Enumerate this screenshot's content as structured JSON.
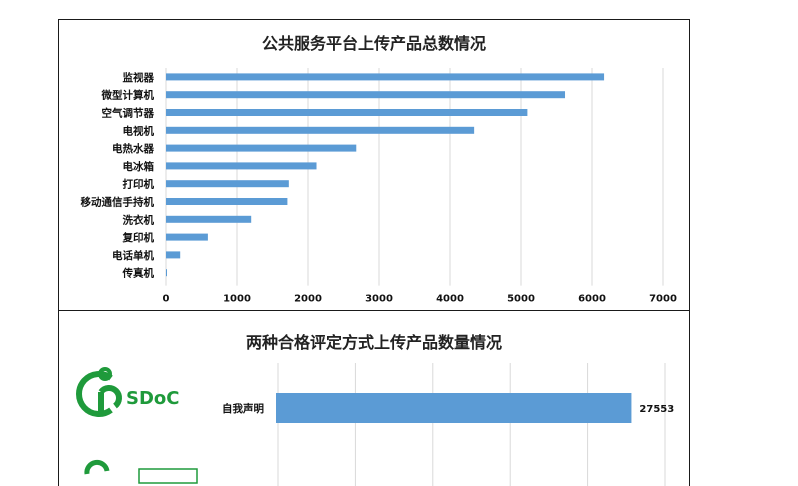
{
  "chart_data": [
    {
      "type": "bar",
      "orientation": "horizontal",
      "title": "公共服务平台上传产品总数情况",
      "categories": [
        "监视器",
        "微型计算机",
        "空气调节器",
        "电视机",
        "电热水器",
        "电冰箱",
        "打印机",
        "移动通信手持机",
        "洗衣机",
        "复印机",
        "电话单机",
        "传真机"
      ],
      "values": [
        6170,
        5620,
        5090,
        4340,
        2680,
        2120,
        1730,
        1710,
        1200,
        590,
        200,
        10
      ],
      "xlim": [
        0,
        7000
      ],
      "xticks": [
        "0",
        "1000",
        "2000",
        "3000",
        "4000",
        "5000",
        "6000",
        "7000"
      ],
      "grid": true,
      "bar_color": "#5b9bd5"
    },
    {
      "type": "bar",
      "orientation": "horizontal",
      "title": "两种合格评定方式上传产品数量情况",
      "categories": [
        "自我声明"
      ],
      "values": [
        27553
      ],
      "data_labels": [
        "27553"
      ],
      "xlim": [
        0,
        30000
      ],
      "grid": true,
      "bar_color": "#5b9bd5"
    }
  ],
  "logo": {
    "text": "SDoC",
    "color": "#1f9a3b"
  }
}
